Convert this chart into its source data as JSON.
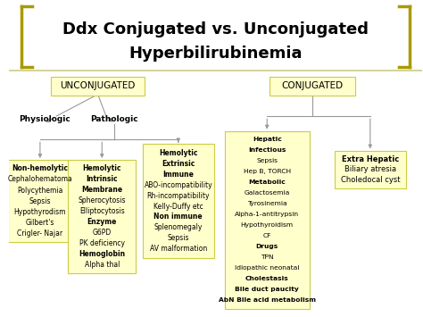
{
  "title_line1": "Ddx Conjugated vs. Unconjugated",
  "title_line2": "Hyperbilirubinemia",
  "bg_color": "#ffffff",
  "box_fill": "#ffffcc",
  "box_edge": "#cccc44",
  "line_color": "#999999",
  "bracket_color": "#aa9900",
  "separator_color": "#cccc88",
  "bold_lines": [
    "Non-hemolytic",
    "Hemolytic",
    "Intrinsic",
    "Extrinsic",
    "Hepatic",
    "Extra Hepatic",
    "Membrane",
    "Enzyme",
    "Hemoglobin",
    "Infectious",
    "Metabolic",
    "Drugs",
    "Cholestasis",
    "Bile duct paucity",
    "AbN Bile acid metabolism",
    "Immune",
    "Non Immune",
    "Non immune"
  ]
}
